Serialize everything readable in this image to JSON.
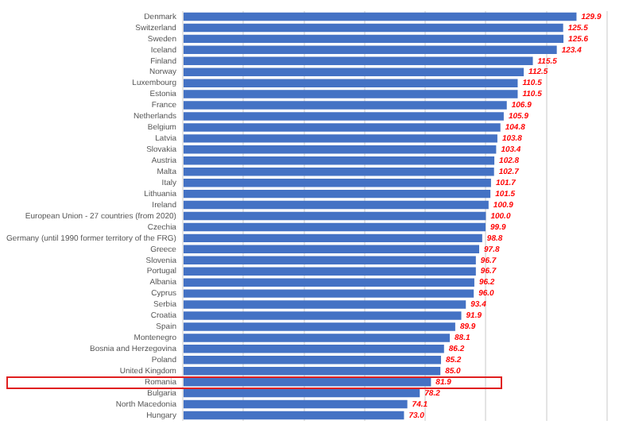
{
  "chart_data": {
    "type": "bar",
    "orientation": "horizontal",
    "categories": [
      "Denmark",
      "Switzerland",
      "Sweden",
      "Iceland",
      "Finland",
      "Norway",
      "Luxembourg",
      "Estonia",
      "France",
      "Netherlands",
      "Belgium",
      "Latvia",
      "Slovakia",
      "Austria",
      "Malta",
      "Italy",
      "Lithuania",
      "Ireland",
      "European Union - 27 countries (from 2020)",
      "Czechia",
      "Germany (until 1990 former territory of the FRG)",
      "Greece",
      "Slovenia",
      "Portugal",
      "Albania",
      "Cyprus",
      "Serbia",
      "Croatia",
      "Spain",
      "Montenegro",
      "Bosnia and Herzegovina",
      "Poland",
      "United Kingdom",
      "Romania",
      "Bulgaria",
      "North Macedonia",
      "Hungary"
    ],
    "values": [
      129.9,
      125.5,
      125.6,
      123.4,
      115.5,
      112.5,
      110.5,
      110.5,
      106.9,
      105.9,
      104.8,
      103.8,
      103.4,
      102.8,
      102.7,
      101.7,
      101.5,
      100.9,
      100.0,
      99.9,
      98.8,
      97.8,
      96.7,
      96.7,
      96.2,
      96.0,
      93.4,
      91.9,
      89.9,
      88.1,
      86.2,
      85.2,
      85.0,
      81.9,
      78.2,
      74.1,
      73.0
    ],
    "color": "#4472c4",
    "xlim": [
      0,
      140
    ],
    "value_labels": [
      "129.9",
      "125.5",
      "125.6",
      "123.4",
      "115.5",
      "112.5",
      "110.5",
      "110.5",
      "106.9",
      "105.9",
      "104.8",
      "103.8",
      "103.4",
      "102.8",
      "102.7",
      "101.7",
      "101.5",
      "100.9",
      "100.0",
      "99.9",
      "98.8",
      "97.8",
      "96.7",
      "96.7",
      "96.2",
      "96.0",
      "93.4",
      "91.9",
      "89.9",
      "88.1",
      "86.2",
      "85.2",
      "85.0",
      "81.9",
      "78.2",
      "74.1",
      "73.0"
    ],
    "xticks": [
      {
        "value": 0,
        "label": null
      },
      {
        "value": 20,
        "label": null
      },
      {
        "value": 40,
        "label": null
      },
      {
        "value": 60,
        "label": null
      },
      {
        "value": 80,
        "label": null
      },
      {
        "value": 100,
        "label": null
      },
      {
        "value": 120,
        "label": null
      },
      {
        "value": 140,
        "label": null
      }
    ],
    "grid": "x",
    "tick_labels": "y",
    "legend": false
  }
}
